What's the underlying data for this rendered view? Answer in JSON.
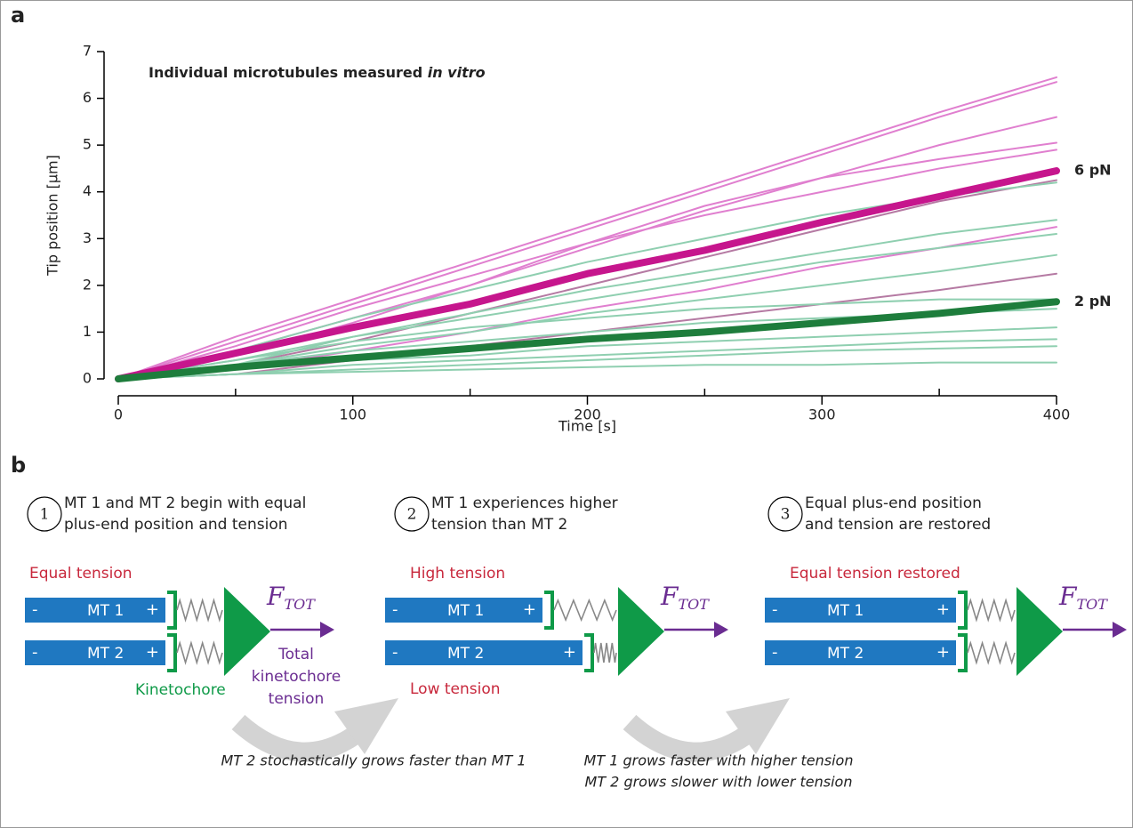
{
  "panel_labels": [
    "a",
    "b"
  ],
  "chart_data": {
    "type": "line",
    "title": "Individual microtubules measured",
    "title_italic": "in vitro",
    "x_label": "Time [s]",
    "y_label": "Tip position [µm]",
    "x": [
      0,
      50,
      100,
      150,
      200,
      250,
      300,
      350,
      400
    ],
    "xlim": [
      0,
      400
    ],
    "xticks": [
      0,
      100,
      200,
      300,
      400
    ],
    "xminor_ticks": [
      50,
      150,
      250,
      350
    ],
    "ylim": [
      0,
      7
    ],
    "yticks": [
      0,
      1,
      2,
      3,
      4,
      5,
      6,
      7
    ],
    "series": [
      {
        "color": "#e07fcf",
        "values": [
          0,
          0.9,
          1.7,
          2.5,
          3.3,
          4.1,
          4.9,
          5.7,
          6.45
        ]
      },
      {
        "color": "#e07fcf",
        "values": [
          0,
          0.8,
          1.6,
          2.4,
          3.2,
          4.0,
          4.8,
          5.6,
          6.35
        ]
      },
      {
        "color": "#e07fcf",
        "values": [
          0,
          0.6,
          1.3,
          2.0,
          2.8,
          3.6,
          4.3,
          5.0,
          5.6
        ]
      },
      {
        "color": "#e07fcf",
        "values": [
          0,
          0.5,
          1.2,
          2.0,
          2.9,
          3.7,
          4.3,
          4.7,
          5.05
        ]
      },
      {
        "color": "#e07fcf",
        "values": [
          0,
          0.7,
          1.5,
          2.2,
          2.9,
          3.5,
          4.0,
          4.5,
          4.9
        ]
      },
      {
        "color": "#b57aa3",
        "values": [
          0,
          0.3,
          0.8,
          1.4,
          2.0,
          2.6,
          3.2,
          3.8,
          4.25
        ]
      },
      {
        "color": "#e07fcf",
        "values": [
          0,
          0.2,
          0.6,
          1.0,
          1.5,
          1.9,
          2.4,
          2.8,
          3.25
        ]
      },
      {
        "color": "#b57aa3",
        "values": [
          0,
          0.1,
          0.4,
          0.7,
          1.0,
          1.3,
          1.6,
          1.9,
          2.25
        ]
      },
      {
        "color": "#8fcfb0",
        "values": [
          0,
          0.6,
          1.3,
          1.9,
          2.5,
          3.0,
          3.5,
          3.9,
          4.2
        ]
      },
      {
        "color": "#8fcfb0",
        "values": [
          0,
          0.3,
          0.9,
          1.4,
          1.9,
          2.3,
          2.7,
          3.1,
          3.4
        ]
      },
      {
        "color": "#8fcfb0",
        "values": [
          0,
          0.4,
          0.9,
          1.3,
          1.7,
          2.1,
          2.5,
          2.8,
          3.1
        ]
      },
      {
        "color": "#8fcfb0",
        "values": [
          0,
          0.3,
          0.7,
          1.0,
          1.4,
          1.7,
          2.0,
          2.3,
          2.65
        ]
      },
      {
        "color": "#8fcfb0",
        "values": [
          0,
          0.4,
          0.8,
          1.1,
          1.3,
          1.5,
          1.6,
          1.7,
          1.7
        ]
      },
      {
        "color": "#8fcfb0",
        "values": [
          0,
          0.3,
          0.6,
          0.8,
          1.0,
          1.2,
          1.3,
          1.4,
          1.5
        ]
      },
      {
        "color": "#8fcfb0",
        "values": [
          0,
          0.2,
          0.4,
          0.5,
          0.7,
          0.8,
          0.9,
          1.0,
          1.1
        ]
      },
      {
        "color": "#8fcfb0",
        "values": [
          0,
          0.1,
          0.3,
          0.4,
          0.5,
          0.6,
          0.7,
          0.8,
          0.85
        ]
      },
      {
        "color": "#8fcfb0",
        "values": [
          0,
          0.1,
          0.2,
          0.3,
          0.4,
          0.5,
          0.6,
          0.65,
          0.7
        ]
      },
      {
        "color": "#8fcfb0",
        "values": [
          0,
          0.1,
          0.15,
          0.2,
          0.25,
          0.3,
          0.3,
          0.35,
          0.35
        ]
      },
      {
        "name": "6 pN",
        "color": "#c6168d",
        "values": [
          0,
          0.55,
          1.1,
          1.6,
          2.25,
          2.75,
          3.35,
          3.9,
          4.45
        ]
      },
      {
        "name": "2 pN",
        "color": "#1e7d3c",
        "values": [
          0,
          0.25,
          0.45,
          0.65,
          0.85,
          1.0,
          1.2,
          1.4,
          1.65
        ]
      }
    ]
  },
  "panel_b": {
    "steps": [
      {
        "number": "1",
        "lines": [
          "MT 1 and MT 2 begin with equal",
          "plus-end position and tension"
        ]
      },
      {
        "number": "2",
        "lines": [
          "MT 1 experiences higher",
          "tension than MT 2"
        ]
      },
      {
        "number": "3",
        "lines": [
          "Equal plus-end position",
          "and tension are restored"
        ]
      }
    ],
    "states": [
      {
        "top_label": "Equal tension"
      },
      {
        "top_label": "High tension",
        "bottom_label": "Low tension"
      },
      {
        "top_label": "Equal tension restored"
      }
    ],
    "mt_labels": [
      "MT 1",
      "MT 2"
    ],
    "minus": "-",
    "plus": "+",
    "force": "F",
    "force_sub": "TOT",
    "kinetochore": "Kinetochore",
    "total_tension": [
      "Total",
      "kinetochore",
      "tension"
    ],
    "transitions": [
      {
        "lines": [
          "MT 2 stochastically grows faster than MT 1"
        ]
      },
      {
        "lines": [
          "MT 1 grows faster with higher tension",
          "MT 2 grows slower with lower tension"
        ]
      }
    ]
  }
}
